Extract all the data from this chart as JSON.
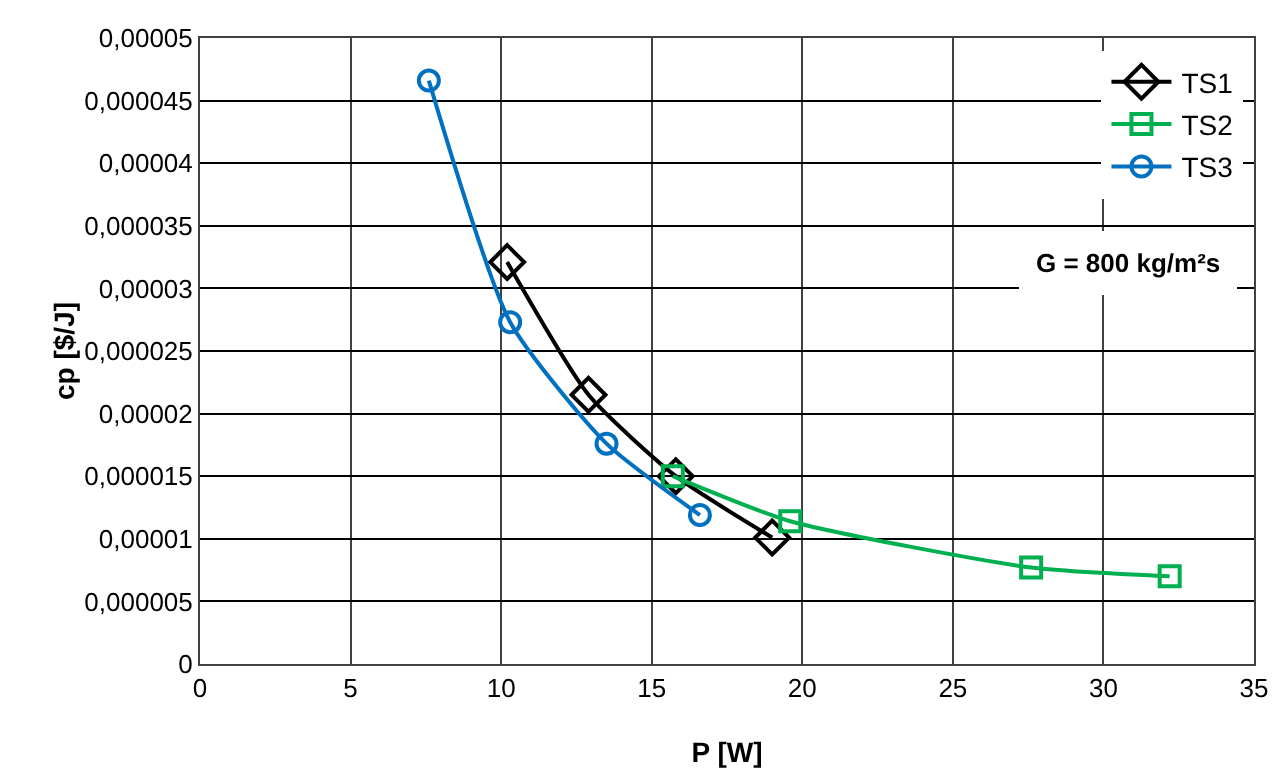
{
  "chart_data": {
    "type": "line",
    "xlabel": "P [W]",
    "ylabel": "cp [$/J]",
    "annotations": [
      "G = 800 kg/m²s"
    ],
    "series": [
      {
        "name": "TS1",
        "color": "#000000",
        "marker": "diamond",
        "x": [
          10.2,
          12.9,
          15.8,
          19.0
        ],
        "values": [
          3.21e-05,
          2.15e-05,
          1.5e-05,
          1.01e-05
        ]
      },
      {
        "name": "TS2",
        "color": "#00b050",
        "marker": "square",
        "x": [
          15.7,
          19.6,
          27.6,
          32.2
        ],
        "values": [
          1.5e-05,
          1.14e-05,
          7.7e-06,
          7e-06
        ]
      },
      {
        "name": "TS3",
        "color": "#0070c0",
        "marker": "circle",
        "x": [
          7.6,
          10.3,
          13.5,
          16.6
        ],
        "values": [
          4.66e-05,
          2.73e-05,
          1.76e-05,
          1.19e-05
        ]
      }
    ],
    "xlim": [
      0,
      35
    ],
    "xticks": [
      0,
      5,
      10,
      15,
      20,
      25,
      30,
      35
    ],
    "ylim": [
      0,
      5e-05
    ],
    "yticks": [
      0,
      {
        "value": 5e-06,
        "label": "0,000005"
      },
      {
        "value": 1e-05,
        "label": "0,00001"
      },
      {
        "value": 1.5e-05,
        "label": "0,000015"
      },
      {
        "value": 2e-05,
        "label": "0,00002"
      },
      {
        "value": 2.5e-05,
        "label": "0,000025"
      },
      {
        "value": 3e-05,
        "label": "0,00003"
      },
      {
        "value": 3.5e-05,
        "label": "0,000035"
      },
      {
        "value": 4e-05,
        "label": "0,00004"
      },
      {
        "value": 4.5e-05,
        "label": "0,000045"
      },
      {
        "value": 5e-05,
        "label": "0,00005"
      }
    ],
    "grid": true,
    "legend": "top right"
  }
}
